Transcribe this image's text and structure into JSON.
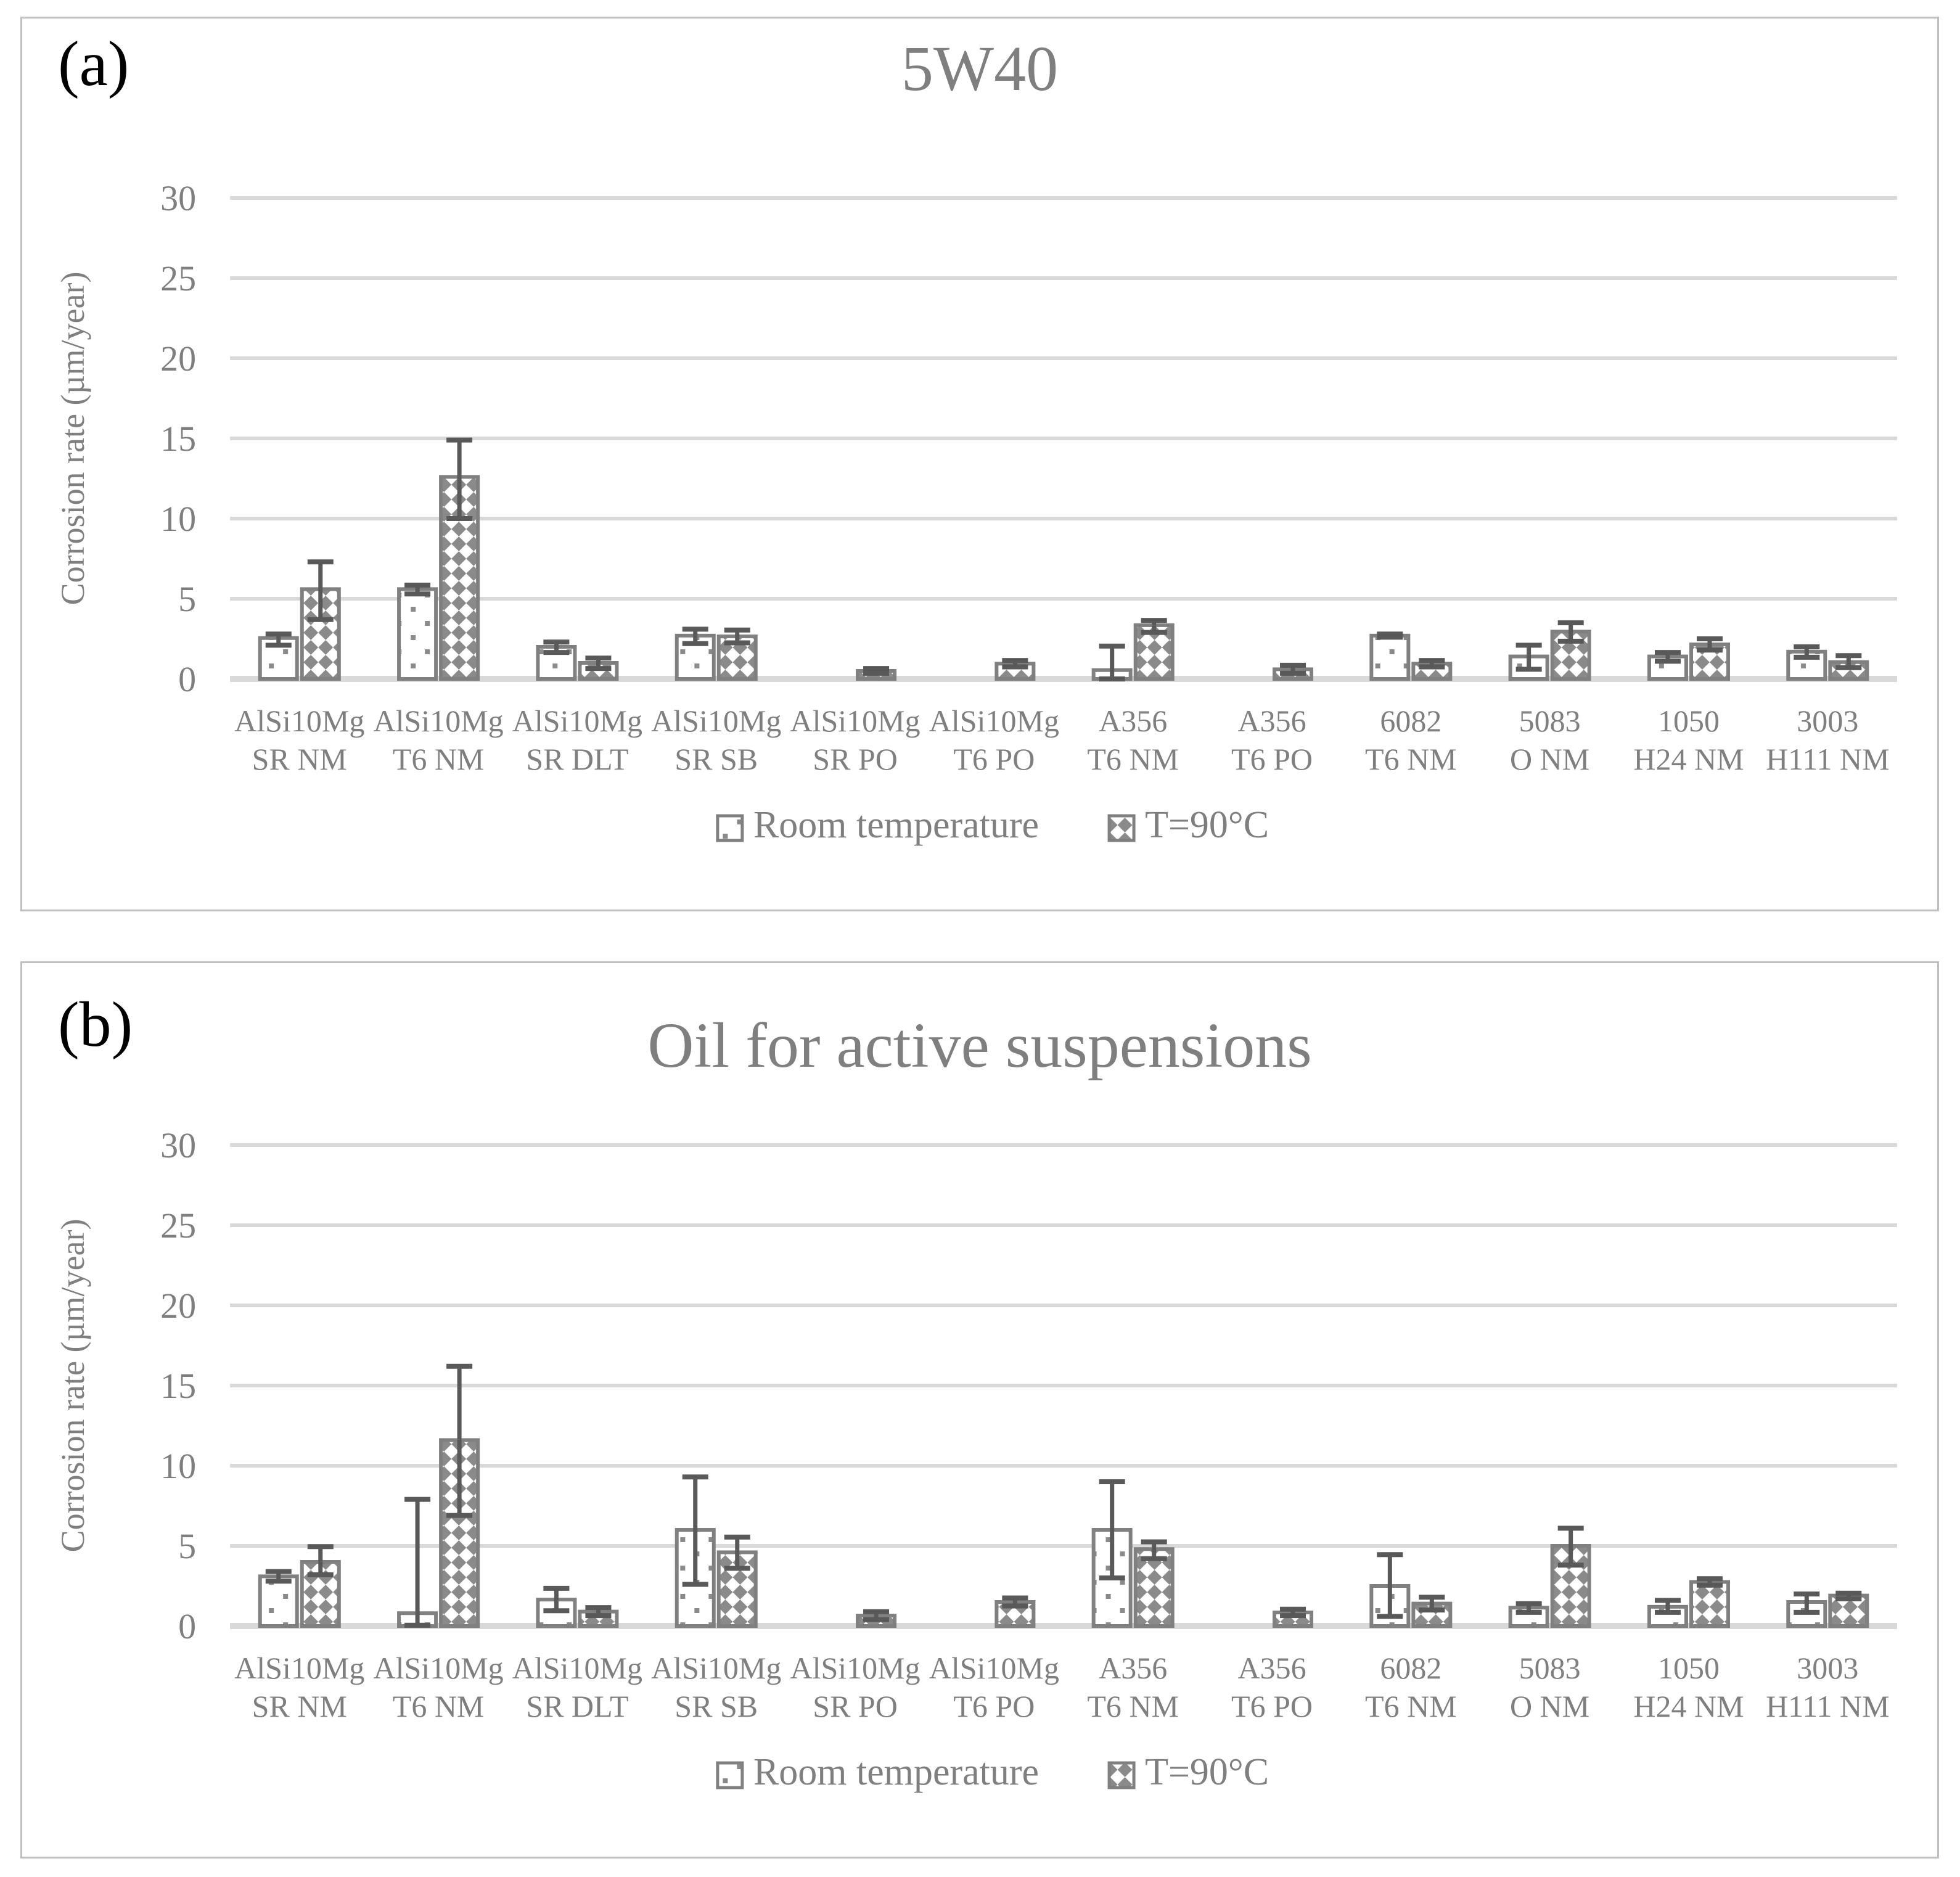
{
  "colors": {
    "bar_border": "#808080",
    "pattern_fg": "#8a8a8a",
    "pattern_bg": "#ffffff",
    "error_bar": "#595959",
    "gridline": "#d9d9d9",
    "text": "#7f7f7f",
    "panel_letter": "#000000",
    "panel_border": "#bfbfbf"
  },
  "chart_data": [
    {
      "type": "bar",
      "panel_label": "(a)",
      "title": "5W40",
      "ylabel": "Corrosion rate (µm/year)",
      "ylim": [
        0,
        30
      ],
      "yticks": [
        0,
        5,
        10,
        15,
        20,
        25,
        30
      ],
      "grid": true,
      "legend_position": "bottom",
      "categories": [
        [
          "AlSi10Mg",
          "SR NM"
        ],
        [
          "AlSi10Mg",
          "T6 NM"
        ],
        [
          "AlSi10Mg",
          "SR DLT"
        ],
        [
          "AlSi10Mg",
          "SR SB"
        ],
        [
          "AlSi10Mg",
          "SR PO"
        ],
        [
          "AlSi10Mg",
          "T6 PO"
        ],
        [
          "A356",
          "T6 NM"
        ],
        [
          "A356",
          "T6 PO"
        ],
        [
          "6082",
          "T6 NM"
        ],
        [
          "5083",
          "O NM"
        ],
        [
          "1050",
          "H24 NM"
        ],
        [
          "3003",
          "H111 NM"
        ]
      ],
      "series": [
        {
          "name": "Room temperature",
          "pattern": "dots",
          "values": [
            2.55,
            5.6,
            2.0,
            2.7,
            0,
            0,
            0.55,
            0,
            2.7,
            1.4,
            1.4,
            1.7
          ],
          "err_minus": [
            0.45,
            0.3,
            0.35,
            0.5,
            0,
            0,
            0.55,
            0,
            0.1,
            0.8,
            0.3,
            0.35
          ],
          "err_plus": [
            0.25,
            0.25,
            0.3,
            0.4,
            0,
            0,
            1.5,
            0,
            0.1,
            0.7,
            0.25,
            0.3
          ]
        },
        {
          "name": "T=90°C",
          "pattern": "checker",
          "values": [
            5.6,
            12.6,
            1.0,
            2.65,
            0.5,
            0.95,
            3.35,
            0.6,
            0.95,
            2.95,
            2.15,
            1.05
          ],
          "err_minus": [
            1.9,
            2.6,
            0.35,
            0.4,
            0.15,
            0.2,
            0.45,
            0.25,
            0.2,
            0.6,
            0.35,
            0.35
          ],
          "err_plus": [
            1.7,
            2.3,
            0.3,
            0.4,
            0.15,
            0.2,
            0.3,
            0.25,
            0.2,
            0.55,
            0.35,
            0.4
          ]
        }
      ]
    },
    {
      "type": "bar",
      "panel_label": "(b)",
      "title": "Oil for active suspensions",
      "ylabel": "Corrosion rate (µm/year)",
      "ylim": [
        0,
        30
      ],
      "yticks": [
        0,
        5,
        10,
        15,
        20,
        25,
        30
      ],
      "grid": true,
      "legend_position": "bottom",
      "categories": [
        [
          "AlSi10Mg",
          "SR NM"
        ],
        [
          "AlSi10Mg",
          "T6 NM"
        ],
        [
          "AlSi10Mg",
          "SR DLT"
        ],
        [
          "AlSi10Mg",
          "SR SB"
        ],
        [
          "AlSi10Mg",
          "SR PO"
        ],
        [
          "AlSi10Mg",
          "T6 PO"
        ],
        [
          "A356",
          "T6 NM"
        ],
        [
          "A356",
          "T6 PO"
        ],
        [
          "6082",
          "T6 NM"
        ],
        [
          "5083",
          "O NM"
        ],
        [
          "1050",
          "H24 NM"
        ],
        [
          "3003",
          "H111 NM"
        ]
      ],
      "series": [
        {
          "name": "Room temperature",
          "pattern": "dots",
          "values": [
            3.1,
            0.8,
            1.65,
            6.0,
            0,
            0,
            6.0,
            0,
            2.5,
            1.15,
            1.2,
            1.5
          ],
          "err_minus": [
            0.3,
            0.75,
            0.7,
            3.4,
            0,
            0,
            3.0,
            0,
            1.9,
            0.3,
            0.35,
            0.65
          ],
          "err_plus": [
            0.3,
            7.1,
            0.7,
            3.3,
            0,
            0,
            3.0,
            0,
            1.95,
            0.25,
            0.4,
            0.5
          ]
        },
        {
          "name": "T=90°C",
          "pattern": "checker",
          "values": [
            4.0,
            11.6,
            0.9,
            4.6,
            0.65,
            1.5,
            4.8,
            0.85,
            1.4,
            5.0,
            2.75,
            1.9
          ],
          "err_minus": [
            0.8,
            4.7,
            0.25,
            1.0,
            0.25,
            0.25,
            0.6,
            0.2,
            0.4,
            1.2,
            0.2,
            0.2
          ],
          "err_plus": [
            0.95,
            4.6,
            0.25,
            0.95,
            0.25,
            0.25,
            0.45,
            0.2,
            0.4,
            1.1,
            0.2,
            0.15
          ]
        }
      ]
    }
  ]
}
